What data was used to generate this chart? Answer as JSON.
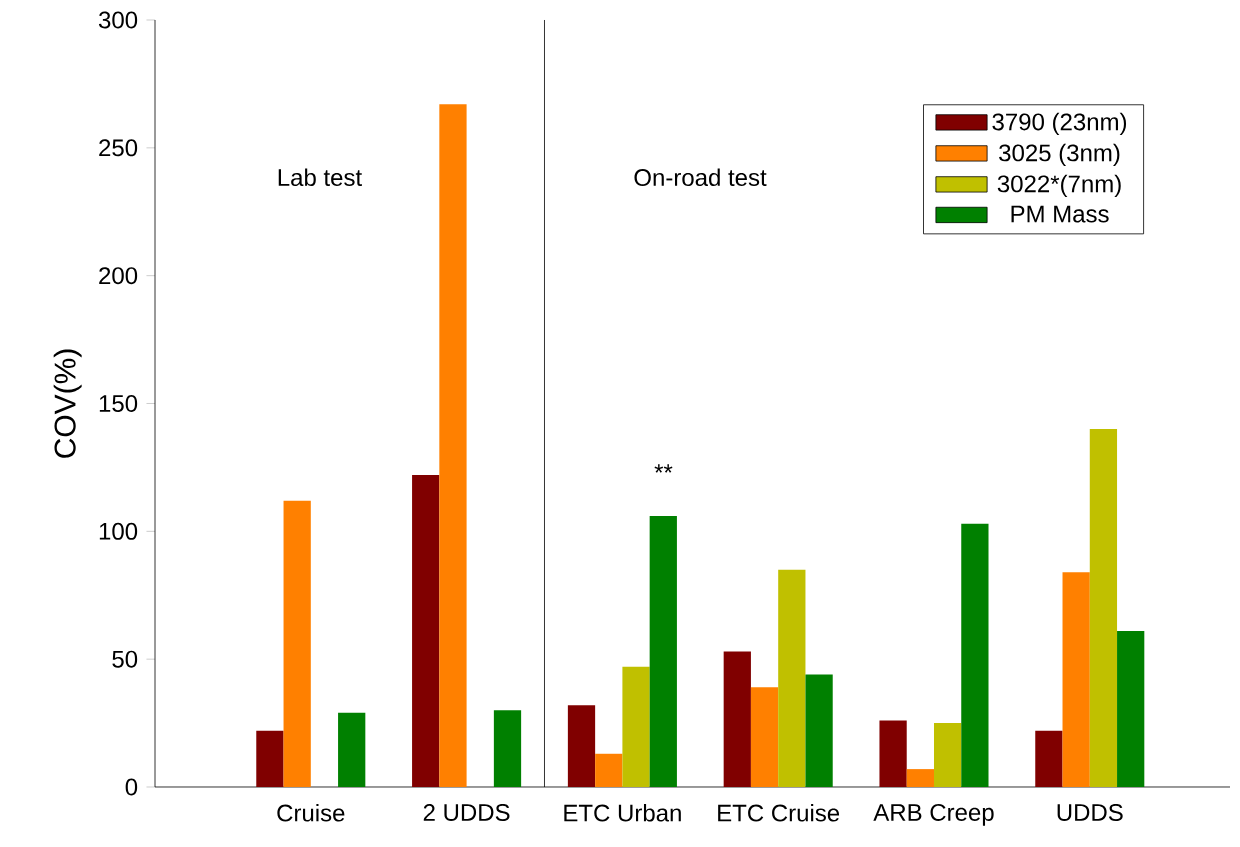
{
  "chart_data": {
    "type": "bar",
    "ylabel": "COV(%)",
    "categories": [
      "Cruise",
      "2 UDDS",
      "ETC Urban",
      "ETC Cruise",
      "ARB Creep",
      "UDDS"
    ],
    "series": [
      {
        "name": "3790 (23nm)",
        "color": "#800000",
        "values": [
          22,
          122,
          32,
          53,
          26,
          22
        ]
      },
      {
        "name": "3025 (3nm)",
        "color": "#ff8000",
        "values": [
          112,
          267,
          13,
          39,
          7,
          84
        ]
      },
      {
        "name": "3022*(7nm)",
        "color": "#c0c000",
        "values": [
          null,
          null,
          47,
          85,
          25,
          140
        ]
      },
      {
        "name": "PM Mass",
        "color": "#008000",
        "values": [
          29,
          30,
          106,
          44,
          103,
          61
        ]
      }
    ],
    "ylim": [
      0,
      300
    ],
    "yticks": [
      0,
      50,
      100,
      150,
      200,
      250,
      300
    ],
    "annotations": [
      "Lab test",
      "On-road test",
      "**"
    ],
    "legend": "top right",
    "grid": false
  }
}
